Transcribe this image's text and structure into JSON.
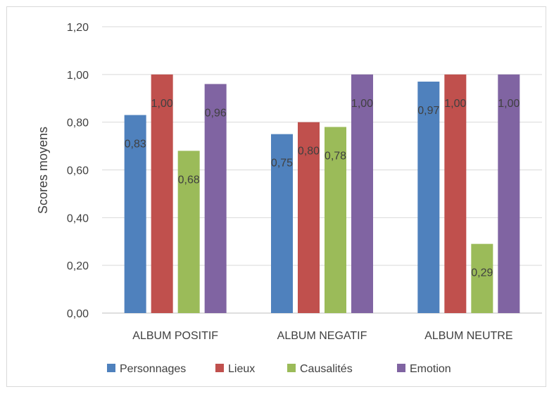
{
  "chart_data": {
    "type": "bar",
    "title": "",
    "xlabel": "",
    "ylabel": "Scores moyens",
    "ylim": [
      0,
      1.2
    ],
    "yticks": [
      0,
      0.2,
      0.4,
      0.6,
      0.8,
      1.0,
      1.2
    ],
    "ytick_labels": [
      "0,00",
      "0,20",
      "0,40",
      "0,60",
      "0,80",
      "1,00",
      "1,20"
    ],
    "grid": true,
    "legend_position": "bottom",
    "categories": [
      "ALBUM POSITIF",
      "ALBUM NEGATIF",
      "ALBUM NEUTRE"
    ],
    "series": [
      {
        "name": "Personnages",
        "color": "#4f81bd",
        "values": [
          0.83,
          0.75,
          0.97
        ],
        "labels": [
          "0,83",
          "0,75",
          "0,97"
        ]
      },
      {
        "name": "Lieux",
        "color": "#c0504d",
        "values": [
          1.0,
          0.8,
          1.0
        ],
        "labels": [
          "1,00",
          "0,80",
          "1,00"
        ]
      },
      {
        "name": "Causalités",
        "color": "#9bbb59",
        "values": [
          0.68,
          0.78,
          0.29
        ],
        "labels": [
          "0,68",
          "0,78",
          "0,29"
        ]
      },
      {
        "name": "Emotion",
        "color": "#8064a2",
        "values": [
          0.96,
          1.0,
          1.0
        ],
        "labels": [
          "0,96",
          "1,00",
          "1,00"
        ]
      }
    ]
  }
}
